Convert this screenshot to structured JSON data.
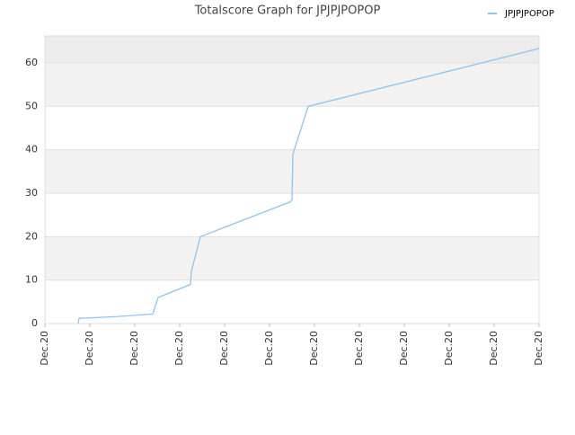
{
  "chart_data": {
    "type": "line",
    "title": "Totalscore Graph for JPJPJPOPOP",
    "x": [
      0.74,
      0.76,
      1.6,
      2.4,
      2.52,
      3.24,
      3.26,
      3.46,
      5.46,
      5.5,
      5.52,
      5.86,
      11
    ],
    "series": [
      {
        "name": "JPJPJPOPOP",
        "color": "#8ec4ee",
        "values": [
          0,
          1.2,
          1.6,
          2.2,
          6,
          9,
          12,
          20,
          28,
          28.5,
          39,
          50,
          63.3
        ]
      }
    ],
    "xlim": [
      0,
      11
    ],
    "xticks": [
      {
        "value": 0,
        "label": "Dec.20"
      },
      {
        "value": 1,
        "label": "Dec.20"
      },
      {
        "value": 2,
        "label": "Dec.20"
      },
      {
        "value": 3,
        "label": "Dec.20"
      },
      {
        "value": 4,
        "label": "Dec.20"
      },
      {
        "value": 5,
        "label": "Dec.20"
      },
      {
        "value": 6,
        "label": "Dec.20"
      },
      {
        "value": 7,
        "label": "Dec.20"
      },
      {
        "value": 8,
        "label": "Dec.20"
      },
      {
        "value": 9,
        "label": "Dec.20"
      },
      {
        "value": 10,
        "label": "Dec.20"
      },
      {
        "value": 11,
        "label": "Dec.20"
      }
    ],
    "ylim": [
      0,
      66.2
    ],
    "yticks": [
      0,
      10,
      20,
      30,
      40,
      50,
      60
    ],
    "grid": true,
    "legend": "top-right"
  }
}
